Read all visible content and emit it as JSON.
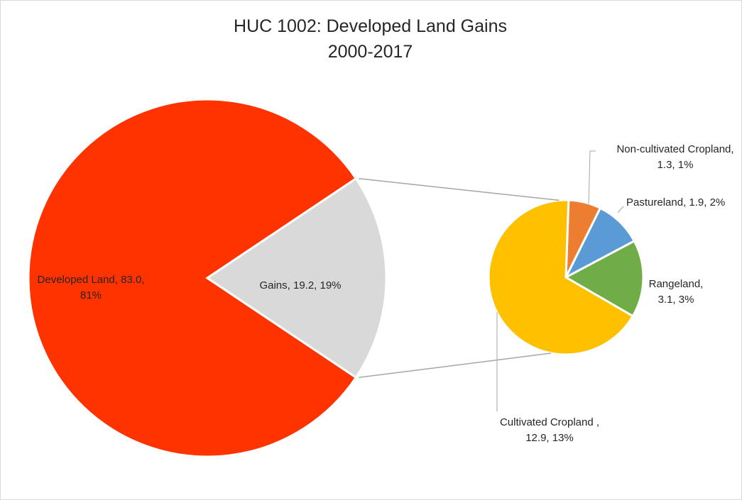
{
  "chart_data": {
    "type": "pie",
    "subtype": "pie-of-pie",
    "title_lines": [
      "HUC 1002: Developed Land Gains",
      "2000-2017"
    ],
    "primary": {
      "slices": [
        {
          "label_lines": [
            "Developed Land, 83.0,",
            "81%"
          ],
          "name": "Developed Land",
          "value": 83.0,
          "percent": 81,
          "color": "#ff3300"
        },
        {
          "label_lines": [
            "Gains, 19.2, 19%"
          ],
          "name": "Gains",
          "value": 19.2,
          "percent": 19,
          "color": "#d9d9d9"
        }
      ]
    },
    "secondary": {
      "parent": "Gains",
      "slices": [
        {
          "label_lines": [
            "Non-cultivated Cropland,",
            "1.3, 1%"
          ],
          "name": "Non-cultivated Cropland",
          "value": 1.3,
          "percent": 1,
          "color": "#ed7d31"
        },
        {
          "label_lines": [
            "Pastureland, 1.9, 2%"
          ],
          "name": "Pastureland",
          "value": 1.9,
          "percent": 2,
          "color": "#5b9bd5"
        },
        {
          "label_lines": [
            "Rangeland,",
            "3.1, 3%"
          ],
          "name": "Rangeland",
          "value": 3.1,
          "percent": 3,
          "color": "#70ad47"
        },
        {
          "label_lines": [
            "Cultivated Cropland ,",
            "12.9, 13%"
          ],
          "name": "Cultivated Cropland",
          "value": 12.9,
          "percent": 13,
          "color": "#ffc000"
        }
      ]
    },
    "legend": "none"
  }
}
